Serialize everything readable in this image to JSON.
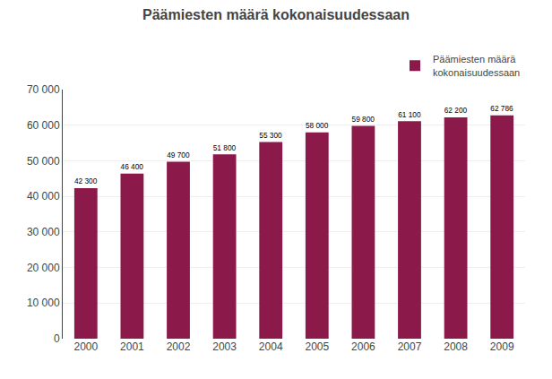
{
  "chart_data": {
    "type": "bar",
    "title": "Päämiesten määrä kokonaisuudessaan",
    "categories": [
      "2000",
      "2001",
      "2002",
      "2003",
      "2004",
      "2005",
      "2006",
      "2007",
      "2008",
      "2009"
    ],
    "series": [
      {
        "name": "Päämiesten määrä\nkokonaisuudessaan",
        "color": "#8B1A4A",
        "values": [
          42300,
          46400,
          49700,
          51800,
          55300,
          58000,
          59800,
          61100,
          62200,
          62786
        ],
        "value_labels": [
          "42 300",
          "46 400",
          "49 700",
          "51 800",
          "55 300",
          "58 000",
          "59 800",
          "61 100",
          "62 200",
          "62 786"
        ]
      }
    ],
    "ylim": [
      0,
      70000
    ],
    "yticks": [
      0,
      {
        "value": 10000,
        "label": "10 000"
      },
      {
        "value": 20000,
        "label": "20 000"
      },
      {
        "value": 30000,
        "label": "30 000"
      },
      {
        "value": 40000,
        "label": "40 000"
      },
      {
        "value": 50000,
        "label": "50 000"
      },
      {
        "value": 60000,
        "label": "60 000"
      },
      {
        "value": 70000,
        "label": "70 000"
      }
    ],
    "grid": true,
    "data_labels": true,
    "legend": "upper right"
  }
}
